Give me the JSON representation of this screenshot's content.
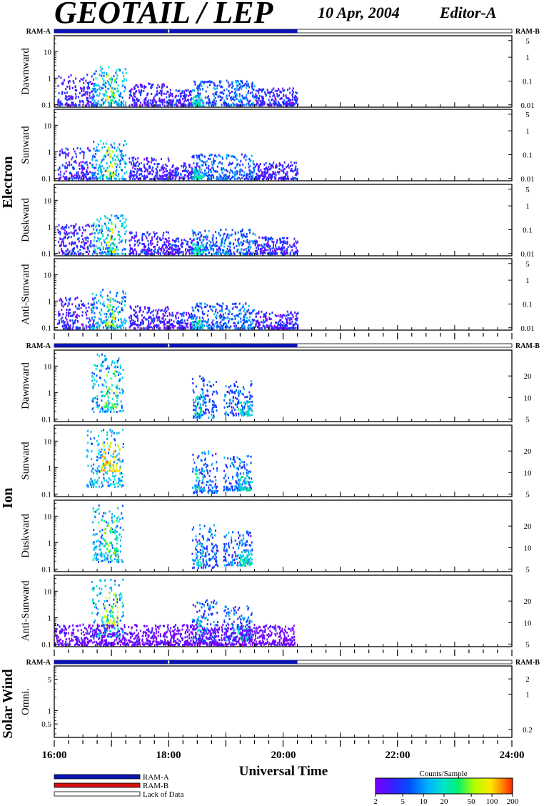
{
  "header": {
    "title": "GEOTAIL / LEP",
    "date": "10 Apr, 2004",
    "editor": "Editor-A"
  },
  "groups": [
    {
      "id": "electron",
      "label": "Electron",
      "ram_left": "RAM-A",
      "ram_right": "RAM-B"
    },
    {
      "id": "ion",
      "label": "Ion",
      "ram_left": "RAM-A",
      "ram_right": "RAM-B"
    },
    {
      "id": "sw",
      "label": "Solar Wind",
      "ram_left": "RAM-A",
      "ram_right": "RAM-B"
    }
  ],
  "ram_bar": {
    "data_start": "16:00",
    "data_end": "20:15",
    "gap_at": "18:00",
    "data_color": "#0a14b4"
  },
  "x_axis": {
    "label": "Universal Time",
    "ticks": [
      "16:00",
      "18:00",
      "20:00",
      "22:00",
      "24:00"
    ],
    "start_hour": 16,
    "end_hour": 24
  },
  "legend": {
    "items": [
      {
        "label": "RAM-A",
        "color": "#0a14b4"
      },
      {
        "label": "RAM-B",
        "color": "#d41010"
      },
      {
        "label": "Lack of Data",
        "color": "#ffffff"
      }
    ]
  },
  "colorbar": {
    "title": "Counts/Sample",
    "ticks": [
      "2",
      "5",
      "10",
      "20",
      "50",
      "100",
      "200"
    ],
    "colors": [
      "#7a00ff",
      "#3a1cff",
      "#0050ff",
      "#00b0ff",
      "#00e6c8",
      "#00f070",
      "#b0ff00",
      "#ffe600",
      "#ff8c00",
      "#ff2000"
    ]
  },
  "chart_data": {
    "type": "heatmap",
    "x_range_hours": [
      16,
      24
    ],
    "panels": [
      {
        "group": "electron",
        "name": "Dawnward",
        "left_ticks": [
          "0.1",
          "1",
          "10"
        ],
        "right_ticks": [
          "0.01",
          "0.1",
          "1",
          "5"
        ],
        "ylim": [
          0.08,
          40
        ],
        "right_lim": [
          0.008,
          8
        ],
        "blobs": [
          {
            "t0": 16.05,
            "t1": 16.7,
            "y0": 0.1,
            "y1": 1.5,
            "lvl": 1
          },
          {
            "t0": 16.65,
            "t1": 17.25,
            "y0": 0.1,
            "y1": 3,
            "lvl": 3
          },
          {
            "t0": 16.9,
            "t1": 17.05,
            "y0": 0.12,
            "y1": 1.8,
            "lvl": 6
          },
          {
            "t0": 17.3,
            "t1": 18.0,
            "y0": 0.1,
            "y1": 0.7,
            "lvl": 1
          },
          {
            "t0": 18.0,
            "t1": 18.4,
            "y0": 0.1,
            "y1": 0.4,
            "lvl": 1
          },
          {
            "t0": 18.4,
            "t1": 19.5,
            "y0": 0.1,
            "y1": 0.9,
            "lvl": 2
          },
          {
            "t0": 18.4,
            "t1": 18.6,
            "y0": 0.1,
            "y1": 0.25,
            "lvl": 4
          },
          {
            "t0": 19.5,
            "t1": 20.25,
            "y0": 0.1,
            "y1": 0.45,
            "lvl": 1
          }
        ]
      },
      {
        "group": "electron",
        "name": "Sunward",
        "left_ticks": [
          "0.1",
          "1",
          "10"
        ],
        "right_ticks": [
          "0.01",
          "0.1",
          "1",
          "5"
        ],
        "ylim": [
          0.08,
          40
        ],
        "right_lim": [
          0.008,
          8
        ],
        "blobs": [
          {
            "t0": 16.05,
            "t1": 16.7,
            "y0": 0.1,
            "y1": 1.5,
            "lvl": 1
          },
          {
            "t0": 16.65,
            "t1": 17.25,
            "y0": 0.1,
            "y1": 3,
            "lvl": 3
          },
          {
            "t0": 16.9,
            "t1": 17.05,
            "y0": 0.12,
            "y1": 1.8,
            "lvl": 6
          },
          {
            "t0": 17.3,
            "t1": 18.0,
            "y0": 0.1,
            "y1": 0.7,
            "lvl": 1
          },
          {
            "t0": 18.0,
            "t1": 18.4,
            "y0": 0.1,
            "y1": 0.4,
            "lvl": 1
          },
          {
            "t0": 18.4,
            "t1": 19.5,
            "y0": 0.1,
            "y1": 0.9,
            "lvl": 2
          },
          {
            "t0": 18.4,
            "t1": 18.6,
            "y0": 0.1,
            "y1": 0.25,
            "lvl": 4
          },
          {
            "t0": 19.5,
            "t1": 20.25,
            "y0": 0.1,
            "y1": 0.45,
            "lvl": 1
          }
        ]
      },
      {
        "group": "electron",
        "name": "Duskward",
        "left_ticks": [
          "0.1",
          "1",
          "10"
        ],
        "right_ticks": [
          "0.01",
          "0.1",
          "1",
          "5"
        ],
        "ylim": [
          0.08,
          40
        ],
        "right_lim": [
          0.008,
          8
        ],
        "blobs": [
          {
            "t0": 16.05,
            "t1": 16.7,
            "y0": 0.1,
            "y1": 1.5,
            "lvl": 1
          },
          {
            "t0": 16.65,
            "t1": 17.25,
            "y0": 0.1,
            "y1": 3,
            "lvl": 3
          },
          {
            "t0": 16.9,
            "t1": 17.05,
            "y0": 0.12,
            "y1": 1.8,
            "lvl": 6
          },
          {
            "t0": 17.3,
            "t1": 18.0,
            "y0": 0.1,
            "y1": 0.7,
            "lvl": 1
          },
          {
            "t0": 18.0,
            "t1": 18.4,
            "y0": 0.1,
            "y1": 0.4,
            "lvl": 1
          },
          {
            "t0": 18.4,
            "t1": 19.5,
            "y0": 0.1,
            "y1": 0.9,
            "lvl": 2
          },
          {
            "t0": 18.4,
            "t1": 18.6,
            "y0": 0.1,
            "y1": 0.25,
            "lvl": 4
          },
          {
            "t0": 19.5,
            "t1": 20.25,
            "y0": 0.1,
            "y1": 0.45,
            "lvl": 1
          }
        ]
      },
      {
        "group": "electron",
        "name": "Anti-Sunward",
        "left_ticks": [
          "0.1",
          "1",
          "10"
        ],
        "right_ticks": [
          "0.01",
          "0.1",
          "1",
          "5"
        ],
        "ylim": [
          0.08,
          40
        ],
        "right_lim": [
          0.008,
          8
        ],
        "blobs": [
          {
            "t0": 16.05,
            "t1": 16.7,
            "y0": 0.1,
            "y1": 1.5,
            "lvl": 1
          },
          {
            "t0": 16.65,
            "t1": 17.25,
            "y0": 0.1,
            "y1": 3,
            "lvl": 3
          },
          {
            "t0": 16.9,
            "t1": 17.05,
            "y0": 0.12,
            "y1": 1.8,
            "lvl": 6
          },
          {
            "t0": 17.3,
            "t1": 18.0,
            "y0": 0.1,
            "y1": 0.7,
            "lvl": 1
          },
          {
            "t0": 18.0,
            "t1": 18.4,
            "y0": 0.1,
            "y1": 0.4,
            "lvl": 1
          },
          {
            "t0": 18.4,
            "t1": 19.5,
            "y0": 0.1,
            "y1": 0.9,
            "lvl": 2
          },
          {
            "t0": 18.4,
            "t1": 18.6,
            "y0": 0.1,
            "y1": 0.25,
            "lvl": 4
          },
          {
            "t0": 19.5,
            "t1": 20.25,
            "y0": 0.1,
            "y1": 0.45,
            "lvl": 1
          }
        ]
      },
      {
        "group": "ion",
        "name": "Dawnward",
        "left_ticks": [
          "0.1",
          "1",
          "10"
        ],
        "right_ticks": [
          "5",
          "10",
          "20"
        ],
        "ylim": [
          0.08,
          40
        ],
        "right_lim": [
          4.6,
          46
        ],
        "blobs": [
          {
            "t0": 16.65,
            "t1": 17.2,
            "y0": 0.2,
            "y1": 30,
            "lvl": 3
          },
          {
            "t0": 16.85,
            "t1": 17.1,
            "y0": 0.3,
            "y1": 8,
            "lvl": 5
          },
          {
            "t0": 18.4,
            "t1": 18.85,
            "y0": 0.12,
            "y1": 5,
            "lvl": 2
          },
          {
            "t0": 18.45,
            "t1": 18.6,
            "y0": 0.15,
            "y1": 1,
            "lvl": 4
          },
          {
            "t0": 18.95,
            "t1": 19.45,
            "y0": 0.15,
            "y1": 3,
            "lvl": 2
          },
          {
            "t0": 19.2,
            "t1": 19.45,
            "y0": 0.15,
            "y1": 0.5,
            "lvl": 4
          }
        ]
      },
      {
        "group": "ion",
        "name": "Sunward",
        "left_ticks": [
          "0.1",
          "1",
          "10"
        ],
        "right_ticks": [
          "5",
          "10",
          "20"
        ],
        "ylim": [
          0.08,
          40
        ],
        "right_lim": [
          4.6,
          46
        ],
        "blobs": [
          {
            "t0": 16.55,
            "t1": 17.2,
            "y0": 0.2,
            "y1": 30,
            "lvl": 3
          },
          {
            "t0": 16.8,
            "t1": 17.15,
            "y0": 0.8,
            "y1": 10,
            "lvl": 7
          },
          {
            "t0": 18.4,
            "t1": 18.85,
            "y0": 0.12,
            "y1": 5,
            "lvl": 2
          },
          {
            "t0": 18.45,
            "t1": 18.6,
            "y0": 0.15,
            "y1": 1,
            "lvl": 4
          },
          {
            "t0": 18.95,
            "t1": 19.45,
            "y0": 0.15,
            "y1": 3,
            "lvl": 2
          },
          {
            "t0": 19.2,
            "t1": 19.45,
            "y0": 0.15,
            "y1": 0.5,
            "lvl": 4
          }
        ]
      },
      {
        "group": "ion",
        "name": "Duskward",
        "left_ticks": [
          "0.1",
          "1",
          "10"
        ],
        "right_ticks": [
          "5",
          "10",
          "20"
        ],
        "ylim": [
          0.08,
          40
        ],
        "right_lim": [
          4.6,
          46
        ],
        "blobs": [
          {
            "t0": 16.65,
            "t1": 17.2,
            "y0": 0.2,
            "y1": 30,
            "lvl": 3
          },
          {
            "t0": 16.85,
            "t1": 17.1,
            "y0": 0.3,
            "y1": 8,
            "lvl": 5
          },
          {
            "t0": 18.4,
            "t1": 18.85,
            "y0": 0.12,
            "y1": 5,
            "lvl": 2
          },
          {
            "t0": 18.45,
            "t1": 18.6,
            "y0": 0.15,
            "y1": 1,
            "lvl": 4
          },
          {
            "t0": 18.95,
            "t1": 19.45,
            "y0": 0.15,
            "y1": 3,
            "lvl": 2
          },
          {
            "t0": 19.2,
            "t1": 19.45,
            "y0": 0.15,
            "y1": 0.5,
            "lvl": 4
          }
        ]
      },
      {
        "group": "ion",
        "name": "Anti-Sunward",
        "left_ticks": [
          "0.1",
          "1",
          "10"
        ],
        "right_ticks": [
          "5",
          "10",
          "20"
        ],
        "ylim": [
          0.08,
          40
        ],
        "right_lim": [
          4.6,
          46
        ],
        "blobs": [
          {
            "t0": 16.65,
            "t1": 17.2,
            "y0": 0.2,
            "y1": 30,
            "lvl": 3
          },
          {
            "t0": 16.85,
            "t1": 17.1,
            "y0": 0.5,
            "y1": 10,
            "lvl": 6
          },
          {
            "t0": 18.4,
            "t1": 18.85,
            "y0": 0.12,
            "y1": 5,
            "lvl": 2
          },
          {
            "t0": 18.45,
            "t1": 18.6,
            "y0": 0.15,
            "y1": 1,
            "lvl": 4
          },
          {
            "t0": 18.95,
            "t1": 19.45,
            "y0": 0.15,
            "y1": 3,
            "lvl": 2
          },
          {
            "t0": 19.2,
            "t1": 19.45,
            "y0": 0.15,
            "y1": 0.5,
            "lvl": 4
          },
          {
            "t0": 16.0,
            "t1": 20.2,
            "y0": 0.1,
            "y1": 0.6,
            "lvl": 0
          }
        ]
      },
      {
        "group": "sw",
        "name": "Omni.",
        "left_ticks": [
          "0.5",
          "1",
          "5"
        ],
        "right_ticks": [
          "0.2",
          "1",
          "2"
        ],
        "ylim": [
          0.25,
          10
        ],
        "right_lim": [
          0.14,
          3.6
        ],
        "blobs": []
      }
    ]
  }
}
